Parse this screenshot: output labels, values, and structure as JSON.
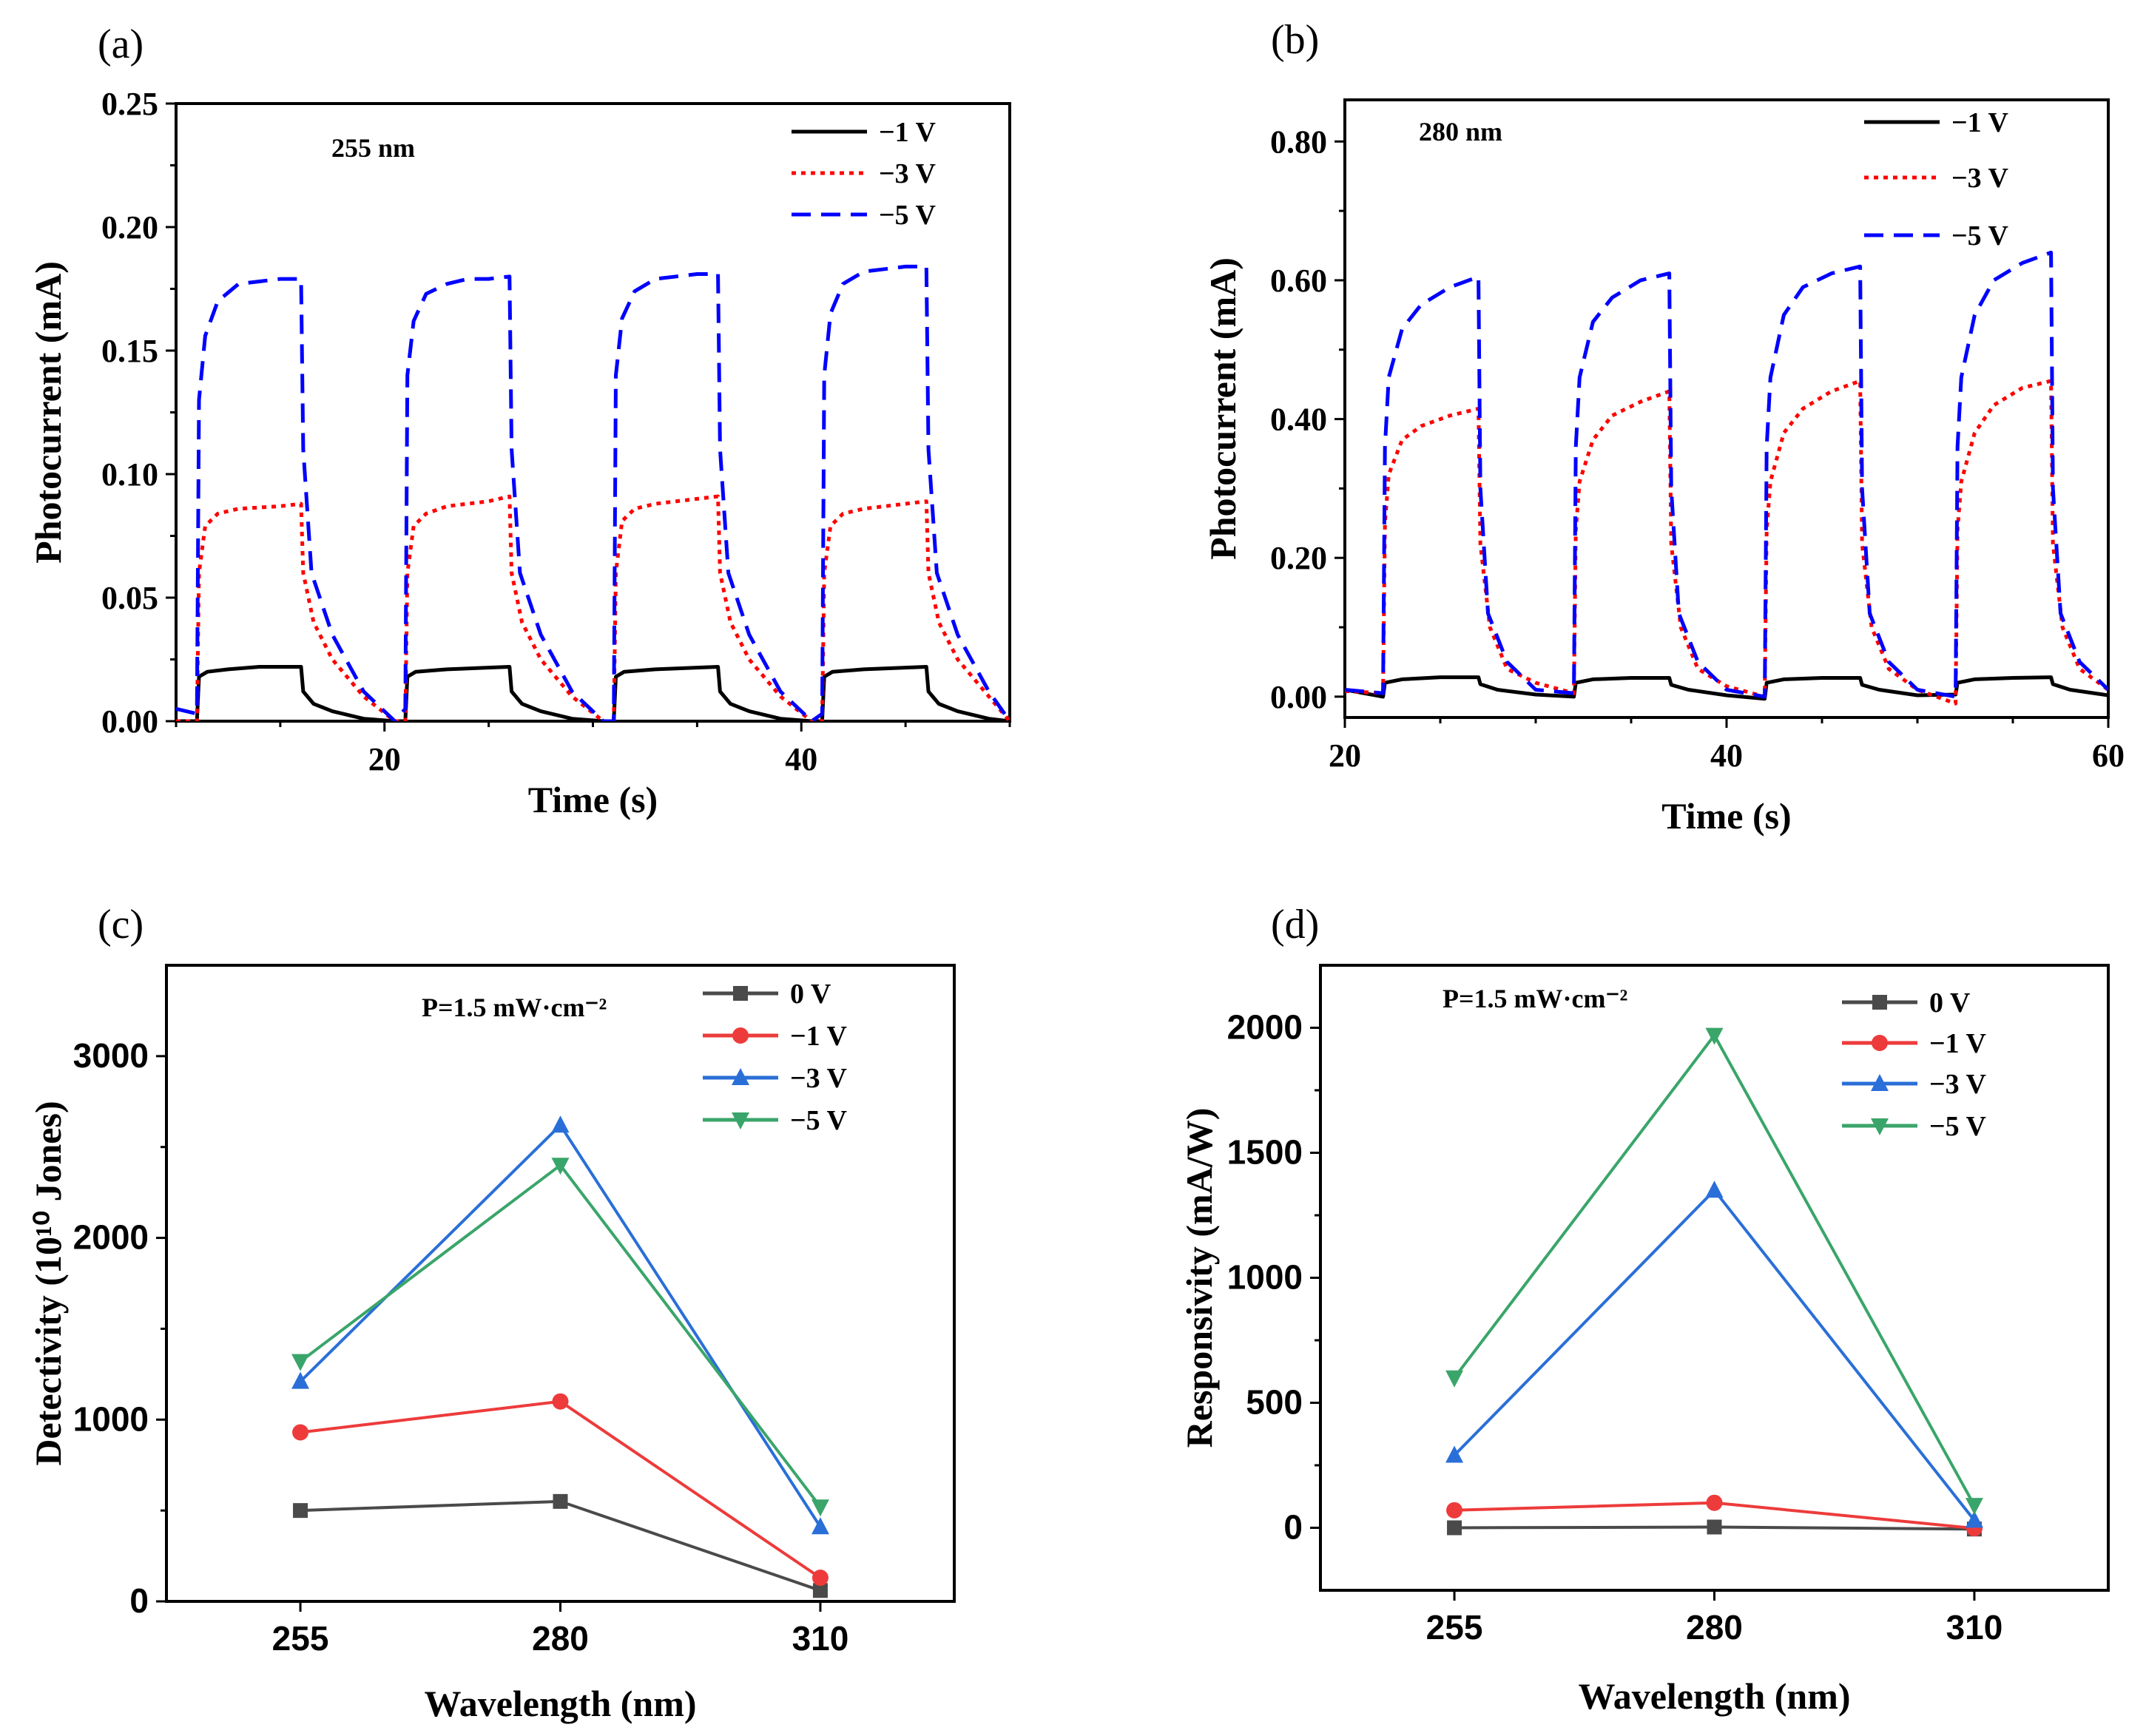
{
  "chart_data": [
    {
      "panel": "(a)",
      "type": "line",
      "annotation": "255 nm",
      "xlabel": "Time (s)",
      "ylabel": "Photocurrent (mA)",
      "xlim": [
        10,
        50
      ],
      "ylim": [
        0,
        0.25
      ],
      "xticks": [
        20,
        40
      ],
      "xtick_labels": [
        "20",
        "40"
      ],
      "yticks": [
        0,
        0.05,
        0.1,
        0.15,
        0.2,
        0.25
      ],
      "ytick_labels": [
        "0.00",
        "0.05",
        "0.10",
        "0.15",
        "0.20",
        "0.25"
      ],
      "series": [
        {
          "name": "−1 V",
          "color": "#000000",
          "style": "solid",
          "x": [
            10,
            11.0,
            11.1,
            11.5,
            12.5,
            14,
            16,
            16.1,
            16.6,
            17.5,
            19,
            20.5,
            21.0,
            21.1,
            21.5,
            23,
            26,
            26.1,
            26.6,
            27.5,
            29,
            30.5,
            31.0,
            31.1,
            31.5,
            33,
            36,
            36.1,
            36.6,
            37.5,
            39,
            40.5,
            41.0,
            41.1,
            41.5,
            43,
            46,
            46.1,
            46.6,
            47.5,
            49,
            50
          ],
          "y": [
            0,
            0,
            0.018,
            0.02,
            0.021,
            0.022,
            0.022,
            0.012,
            0.007,
            0.004,
            0.001,
            0,
            0,
            0.018,
            0.02,
            0.021,
            0.022,
            0.012,
            0.007,
            0.004,
            0.001,
            0,
            0,
            0.018,
            0.02,
            0.021,
            0.022,
            0.012,
            0.007,
            0.004,
            0.001,
            0,
            0,
            0.018,
            0.02,
            0.021,
            0.022,
            0.012,
            0.007,
            0.004,
            0.001,
            0
          ]
        },
        {
          "name": "−3 V",
          "color": "#ff0000",
          "style": "dotted",
          "x": [
            10,
            11.0,
            11.1,
            11.4,
            12,
            13,
            15,
            16,
            16.1,
            16.6,
            17.5,
            19,
            20.5,
            21.0,
            21.1,
            21.4,
            22,
            23,
            25,
            26,
            26.1,
            26.6,
            27.5,
            29,
            30.5,
            31.0,
            31.1,
            31.4,
            32,
            33,
            35,
            36,
            36.1,
            36.6,
            37.5,
            39,
            40.5,
            41.0,
            41.1,
            41.4,
            42,
            43,
            45,
            46,
            46.1,
            46.6,
            47.5,
            49,
            50
          ],
          "y": [
            0,
            0,
            0.06,
            0.079,
            0.084,
            0.086,
            0.087,
            0.088,
            0.06,
            0.04,
            0.025,
            0.01,
            0,
            0,
            0.06,
            0.079,
            0.084,
            0.087,
            0.089,
            0.091,
            0.06,
            0.04,
            0.025,
            0.01,
            0,
            0,
            0.06,
            0.081,
            0.086,
            0.088,
            0.09,
            0.091,
            0.06,
            0.04,
            0.025,
            0.01,
            0,
            0,
            0.06,
            0.079,
            0.084,
            0.086,
            0.088,
            0.089,
            0.06,
            0.04,
            0.025,
            0.01,
            0
          ]
        },
        {
          "name": "−5 V",
          "color": "#0000ff",
          "style": "dashed",
          "x": [
            10,
            11.0,
            11.1,
            11.4,
            12,
            13,
            14,
            15,
            16,
            16.1,
            16.5,
            17.5,
            19,
            20.5,
            21.0,
            21.1,
            21.4,
            22,
            23,
            24,
            25,
            26,
            26.1,
            26.5,
            27.5,
            29,
            30.5,
            31.0,
            31.1,
            31.4,
            32,
            33,
            34,
            35,
            36,
            36.1,
            36.5,
            37.5,
            39,
            40.5,
            41.0,
            41.1,
            41.4,
            42,
            43,
            44,
            45,
            46,
            46.1,
            46.5,
            47.5,
            49,
            50
          ],
          "y": [
            0.005,
            0.003,
            0.13,
            0.156,
            0.17,
            0.177,
            0.178,
            0.179,
            0.179,
            0.11,
            0.06,
            0.035,
            0.012,
            0,
            0.005,
            0.14,
            0.162,
            0.173,
            0.177,
            0.179,
            0.179,
            0.18,
            0.11,
            0.06,
            0.035,
            0.012,
            0,
            0,
            0.14,
            0.163,
            0.174,
            0.179,
            0.18,
            0.181,
            0.181,
            0.11,
            0.06,
            0.035,
            0.012,
            0,
            0.003,
            0.14,
            0.165,
            0.177,
            0.182,
            0.183,
            0.184,
            0.184,
            0.11,
            0.06,
            0.035,
            0.012,
            0
          ]
        }
      ]
    },
    {
      "panel": "(b)",
      "type": "line",
      "annotation": "280 nm",
      "xlabel": "Time (s)",
      "ylabel": "Photocurrent (mA)",
      "xlim": [
        20,
        60
      ],
      "ylim": [
        -0.03,
        0.86
      ],
      "xticks": [
        20,
        40,
        60
      ],
      "xtick_labels": [
        "20",
        "40",
        "60"
      ],
      "yticks": [
        0,
        0.2,
        0.4,
        0.6,
        0.8
      ],
      "ytick_labels": [
        "0.00",
        "0.20",
        "0.40",
        "0.60",
        "0.80"
      ],
      "series": [
        {
          "name": "−1 V",
          "color": "#000000",
          "style": "solid",
          "x": [
            20,
            22.0,
            22.1,
            23.0,
            25,
            27.0,
            27.1,
            28,
            30,
            32.0,
            32.1,
            33.0,
            35,
            37.0,
            37.1,
            38,
            40,
            42.0,
            42.1,
            43.0,
            45,
            47.0,
            47.1,
            48,
            50,
            52.0,
            52.1,
            53.0,
            55,
            57.0,
            57.1,
            58,
            60
          ],
          "y": [
            0.01,
            0,
            0.02,
            0.025,
            0.028,
            0.028,
            0.018,
            0.01,
            0.003,
            0,
            0.02,
            0.025,
            0.027,
            0.027,
            0.017,
            0.01,
            0.002,
            -0.003,
            0.02,
            0.025,
            0.027,
            0.027,
            0.017,
            0.01,
            0.002,
            0.003,
            0.02,
            0.025,
            0.027,
            0.028,
            0.018,
            0.01,
            0.002
          ]
        },
        {
          "name": "−3 V",
          "color": "#ff0000",
          "style": "dotted",
          "x": [
            20,
            22.0,
            22.1,
            22.3,
            23,
            24,
            25.5,
            27.0,
            27.1,
            27.6,
            28.5,
            30,
            32.0,
            32.1,
            32.3,
            33,
            34,
            35.5,
            37.0,
            37.1,
            37.6,
            38.5,
            40,
            42.0,
            42.1,
            42.3,
            43,
            44,
            45.5,
            47.0,
            47.1,
            47.6,
            48.5,
            50,
            52.0,
            52.1,
            52.3,
            53,
            54,
            55.5,
            57.0,
            57.1,
            57.6,
            58.5,
            60
          ],
          "y": [
            0.008,
            0.005,
            0.25,
            0.32,
            0.37,
            0.39,
            0.405,
            0.415,
            0.22,
            0.1,
            0.04,
            0.02,
            0.005,
            0.24,
            0.31,
            0.37,
            0.405,
            0.425,
            0.44,
            0.22,
            0.1,
            0.04,
            0.015,
            0,
            0.24,
            0.31,
            0.38,
            0.415,
            0.44,
            0.455,
            0.22,
            0.1,
            0.04,
            0.01,
            -0.01,
            0.24,
            0.31,
            0.38,
            0.42,
            0.445,
            0.455,
            0.22,
            0.1,
            0.04,
            0.01
          ]
        },
        {
          "name": "−5 V",
          "color": "#0000ff",
          "style": "dashed",
          "x": [
            20,
            22.0,
            22.1,
            22.3,
            23,
            24,
            25.5,
            27.0,
            27.1,
            27.5,
            28.5,
            30,
            32.0,
            32.1,
            32.3,
            33,
            34,
            35.5,
            37.0,
            37.1,
            37.5,
            38.5,
            40,
            42.0,
            42.1,
            42.3,
            43,
            44,
            45.5,
            47.0,
            47.1,
            47.5,
            48.5,
            50,
            52.0,
            52.1,
            52.3,
            53,
            54,
            55.5,
            57.0,
            57.1,
            57.5,
            58.5,
            60
          ],
          "y": [
            0.01,
            0.005,
            0.36,
            0.46,
            0.53,
            0.565,
            0.59,
            0.605,
            0.3,
            0.12,
            0.05,
            0.01,
            0.005,
            0.36,
            0.46,
            0.54,
            0.575,
            0.6,
            0.61,
            0.3,
            0.12,
            0.05,
            0.01,
            0,
            0.36,
            0.46,
            0.55,
            0.59,
            0.61,
            0.62,
            0.3,
            0.12,
            0.05,
            0.01,
            0,
            0.36,
            0.46,
            0.55,
            0.6,
            0.625,
            0.64,
            0.3,
            0.12,
            0.05,
            0.01
          ]
        }
      ]
    },
    {
      "panel": "(c)",
      "type": "line",
      "annotation": "P=1.5 mW·cm⁻²",
      "xlabel": "Wavelength (nm)",
      "ylabel": "Detectivity (10¹⁰ Jones)",
      "categories": [
        "255",
        "280",
        "310"
      ],
      "ylim": [
        0,
        3500
      ],
      "yticks": [
        0,
        1000,
        2000,
        3000
      ],
      "ytick_labels": [
        "0",
        "1000",
        "2000",
        "3000"
      ],
      "series": [
        {
          "name": "0 V",
          "color": "#4a4a4a",
          "marker": "square",
          "values": [
            500,
            550,
            60
          ]
        },
        {
          "name": "−1 V",
          "color": "#ed3b3b",
          "marker": "circle",
          "values": [
            930,
            1100,
            130
          ]
        },
        {
          "name": "−3 V",
          "color": "#2a6fd8",
          "marker": "triangle-up",
          "values": [
            1210,
            2620,
            410
          ]
        },
        {
          "name": "−5 V",
          "color": "#3aa56a",
          "marker": "triangle-down",
          "values": [
            1320,
            2400,
            520
          ]
        }
      ]
    },
    {
      "panel": "(d)",
      "type": "line",
      "annotation": "P=1.5 mW·cm⁻²",
      "xlabel": "Wavelength (nm)",
      "ylabel": "Responsivity (mA/W)",
      "categories": [
        "255",
        "280",
        "310"
      ],
      "ylim": [
        -250,
        2250
      ],
      "yticks": [
        0,
        500,
        1000,
        1500,
        2000
      ],
      "ytick_labels": [
        "0",
        "500",
        "1000",
        "1500",
        "2000"
      ],
      "series": [
        {
          "name": "0 V",
          "color": "#4a4a4a",
          "marker": "square",
          "values": [
            0,
            3,
            -5
          ]
        },
        {
          "name": "−1 V",
          "color": "#ed3b3b",
          "marker": "circle",
          "values": [
            70,
            100,
            -2
          ]
        },
        {
          "name": "−3 V",
          "color": "#2a6fd8",
          "marker": "triangle-up",
          "values": [
            290,
            1350,
            30
          ]
        },
        {
          "name": "−5 V",
          "color": "#3aa56a",
          "marker": "triangle-down",
          "values": [
            600,
            1970,
            90
          ]
        }
      ]
    }
  ]
}
